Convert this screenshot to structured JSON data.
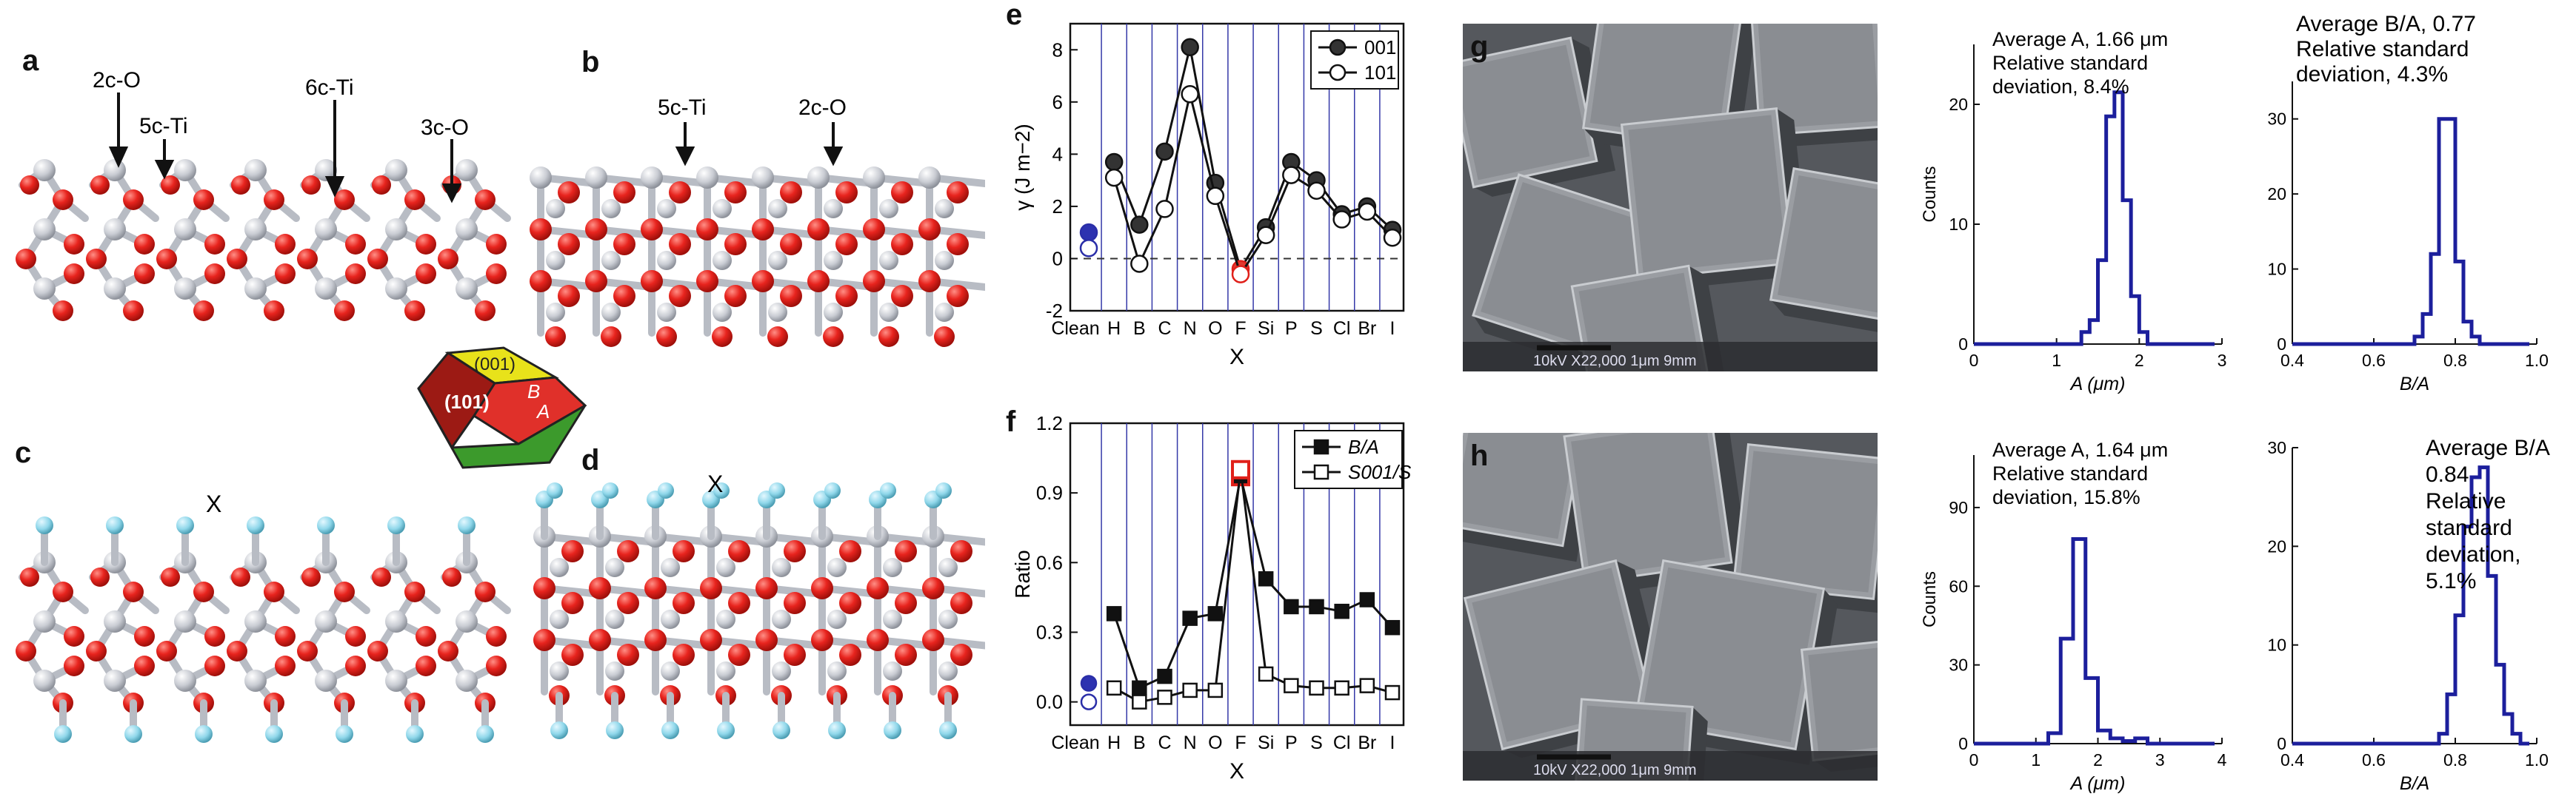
{
  "panels": {
    "a": {
      "letter": "a",
      "labels": [
        "2c-O",
        "5c-Ti",
        "6c-Ti",
        "3c-O"
      ]
    },
    "b": {
      "letter": "b",
      "labels": [
        "5c-Ti",
        "2c-O"
      ]
    },
    "c": {
      "letter": "c",
      "x_label": "X"
    },
    "d": {
      "letter": "d",
      "x_label": "X"
    },
    "crystal": {
      "top": "(001)",
      "front": "(101)",
      "side_b": "B",
      "side_a": "A"
    },
    "e": {
      "letter": "e"
    },
    "f": {
      "letter": "f"
    },
    "g": {
      "letter": "g",
      "sem_text": "10kV  X22,000  1μm  9mm"
    },
    "h": {
      "letter": "h",
      "sem_text": "10kV  X22,000  1μm  9mm"
    }
  },
  "colors": {
    "oxygen": "#e8241e",
    "titanium": "#c9ccd3",
    "adsorbate": "#8fd7ea",
    "hist": "#1c1f9c"
  },
  "chart_data": [
    {
      "id": "e",
      "type": "line",
      "title": "",
      "xlabel": "X",
      "ylabel": "γ (J m−2)",
      "categories": [
        "Clean",
        "H",
        "B",
        "C",
        "N",
        "O",
        "F",
        "Si",
        "P",
        "S",
        "Cl",
        "Br",
        "I"
      ],
      "ylim": [
        -2,
        9
      ],
      "yticks": [
        -2,
        0,
        2,
        4,
        6,
        8
      ],
      "series": [
        {
          "name": "001",
          "values": [
            1.0,
            3.7,
            1.3,
            4.1,
            8.1,
            2.9,
            -0.4,
            1.2,
            3.7,
            3.0,
            1.7,
            2.0,
            1.1
          ]
        },
        {
          "name": "101",
          "values": [
            0.4,
            3.1,
            -0.2,
            1.9,
            6.3,
            2.4,
            -0.6,
            0.9,
            3.2,
            2.6,
            1.5,
            1.8,
            0.8
          ]
        }
      ],
      "legend": "top-right"
    },
    {
      "id": "f",
      "type": "line",
      "title": "",
      "xlabel": "X",
      "ylabel": "Ratio",
      "categories": [
        "Clean",
        "H",
        "B",
        "C",
        "N",
        "O",
        "F",
        "Si",
        "P",
        "S",
        "Cl",
        "Br",
        "I"
      ],
      "ylim": [
        -0.1,
        1.2
      ],
      "yticks": [
        0.0,
        0.3,
        0.6,
        0.9,
        1.2
      ],
      "series": [
        {
          "name": "B/A",
          "values": [
            0.08,
            0.38,
            0.06,
            0.11,
            0.36,
            0.38,
            0.97,
            0.53,
            0.41,
            0.41,
            0.39,
            0.44,
            0.32
          ]
        },
        {
          "name": "S001/S",
          "values": [
            0.0,
            0.06,
            0.0,
            0.02,
            0.05,
            0.05,
            1.0,
            0.12,
            0.07,
            0.06,
            0.06,
            0.07,
            0.04
          ]
        }
      ],
      "legend": "top-right"
    },
    {
      "id": "g1",
      "type": "histogram",
      "xlabel": "A (μm)",
      "ylabel": "Counts",
      "xlim": [
        0,
        3
      ],
      "xticks": [
        0,
        1,
        2,
        3
      ],
      "ylim": [
        0,
        25
      ],
      "yticks": [
        0,
        10,
        20
      ],
      "annotation": [
        "Average A, 1.66 μm",
        "Relative standard",
        "deviation, 8.4%"
      ],
      "bins": [
        [
          1.2,
          0
        ],
        [
          1.3,
          1
        ],
        [
          1.4,
          2
        ],
        [
          1.5,
          7
        ],
        [
          1.6,
          19
        ],
        [
          1.7,
          21
        ],
        [
          1.8,
          12
        ],
        [
          1.9,
          4
        ],
        [
          2.0,
          1
        ],
        [
          2.1,
          0
        ]
      ]
    },
    {
      "id": "g2",
      "type": "histogram",
      "xlabel": "B/A",
      "ylabel": "",
      "xlim": [
        0.4,
        1.0
      ],
      "xticks": [
        0.4,
        0.6,
        0.8,
        1.0
      ],
      "ylim": [
        0,
        35
      ],
      "yticks": [
        0,
        10,
        20,
        30
      ],
      "annotation": [
        "Average B/A, 0.77",
        "Relative standard",
        "deviation, 4.3%"
      ],
      "bins": [
        [
          0.68,
          0
        ],
        [
          0.7,
          1
        ],
        [
          0.72,
          4
        ],
        [
          0.74,
          12
        ],
        [
          0.76,
          30
        ],
        [
          0.78,
          30
        ],
        [
          0.8,
          11
        ],
        [
          0.82,
          3
        ],
        [
          0.84,
          1
        ],
        [
          0.86,
          0
        ]
      ]
    },
    {
      "id": "h1",
      "type": "histogram",
      "xlabel": "A (μm)",
      "ylabel": "Counts",
      "xlim": [
        0,
        4
      ],
      "xticks": [
        0,
        1,
        2,
        3,
        4
      ],
      "ylim": [
        0,
        110
      ],
      "yticks": [
        0,
        30,
        60,
        90
      ],
      "annotation": [
        "Average A, 1.64 μm",
        "Relative standard",
        "deviation, 15.8%"
      ],
      "bins": [
        [
          1.0,
          0
        ],
        [
          1.2,
          4
        ],
        [
          1.4,
          40
        ],
        [
          1.6,
          78
        ],
        [
          1.8,
          25
        ],
        [
          2.0,
          5
        ],
        [
          2.2,
          2
        ],
        [
          2.4,
          1
        ],
        [
          2.6,
          2
        ],
        [
          2.8,
          0
        ]
      ]
    },
    {
      "id": "h2",
      "type": "histogram",
      "xlabel": "B/A",
      "ylabel": "",
      "xlim": [
        0.4,
        1.0
      ],
      "xticks": [
        0.4,
        0.6,
        0.8,
        1.0
      ],
      "ylim": [
        0,
        30
      ],
      "yticks": [
        0,
        10,
        20,
        30
      ],
      "annotation": [
        "Average B/A",
        "0.84",
        "Relative",
        "standard",
        "deviation,",
        "5.1%"
      ],
      "bins": [
        [
          0.74,
          0
        ],
        [
          0.76,
          1
        ],
        [
          0.78,
          5
        ],
        [
          0.8,
          13
        ],
        [
          0.82,
          22
        ],
        [
          0.84,
          27
        ],
        [
          0.86,
          28
        ],
        [
          0.88,
          17
        ],
        [
          0.9,
          8
        ],
        [
          0.92,
          3
        ],
        [
          0.94,
          1
        ],
        [
          0.96,
          0
        ]
      ]
    }
  ]
}
